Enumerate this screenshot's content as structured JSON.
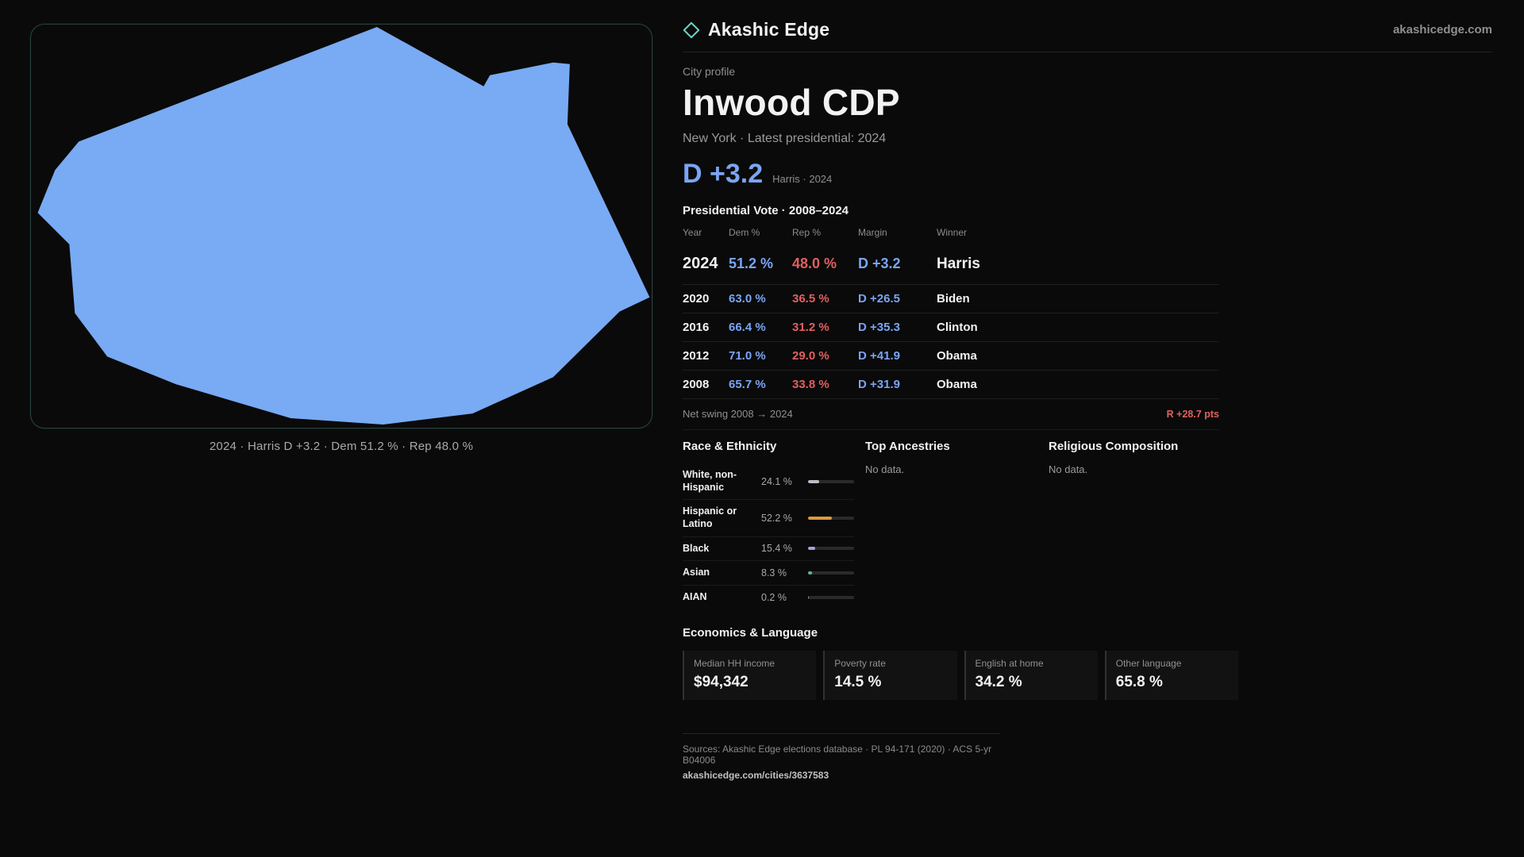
{
  "header": {
    "brand": "Akashic Edge",
    "domain": "akashicedge.com"
  },
  "map": {
    "caption": "2024 · Harris D +3.2 · Dem 51.2 % · Rep 48.0 %",
    "shape_color": "#79aaf4"
  },
  "profile": {
    "kicker": "City profile",
    "title": "Inwood CDP",
    "state_line": "New York · Latest presidential: 2024",
    "headline_margin": "D +3.2",
    "headline_note": "Harris · 2024",
    "table_title": "Presidential Vote · 2008–2024"
  },
  "vote_table": {
    "columns": [
      "Year",
      "Dem %",
      "Rep %",
      "Margin",
      "Winner"
    ],
    "rows": [
      {
        "year": "2024",
        "dem": "51.2 %",
        "rep": "48.0 %",
        "margin": "D +3.2",
        "winner": "Harris"
      },
      {
        "year": "2020",
        "dem": "63.0 %",
        "rep": "36.5 %",
        "margin": "D +26.5",
        "winner": "Biden"
      },
      {
        "year": "2016",
        "dem": "66.4 %",
        "rep": "31.2 %",
        "margin": "D +35.3",
        "winner": "Clinton"
      },
      {
        "year": "2012",
        "dem": "71.0 %",
        "rep": "29.0 %",
        "margin": "D +41.9",
        "winner": "Obama"
      },
      {
        "year": "2008",
        "dem": "65.7 %",
        "rep": "33.8 %",
        "margin": "D +31.9",
        "winner": "Obama"
      }
    ]
  },
  "net_swing": {
    "label": "Net swing 2008 → 2024",
    "value": "R +28.7 pts"
  },
  "race_ethnicity": {
    "title": "Race & Ethnicity",
    "rows": [
      {
        "label": "White, non-Hispanic",
        "value": "24.1 %",
        "pct": 24.1,
        "color": "#b9bec6"
      },
      {
        "label": "Hispanic or Latino",
        "value": "52.2 %",
        "pct": 52.2,
        "color": "#d99a3d"
      },
      {
        "label": "Black",
        "value": "15.4 %",
        "pct": 15.4,
        "color": "#b39ddb"
      },
      {
        "label": "Asian",
        "value": "8.3 %",
        "pct": 8.3,
        "color": "#53c08a"
      },
      {
        "label": "AIAN",
        "value": "0.2 %",
        "pct": 0.2,
        "color": "#9b9b9b"
      }
    ]
  },
  "ancestries": {
    "title": "Top Ancestries",
    "empty": "No data."
  },
  "religion": {
    "title": "Religious Composition",
    "empty": "No data."
  },
  "economics": {
    "title": "Economics & Language",
    "stats": [
      {
        "label": "Median HH income",
        "value": "$94,342"
      },
      {
        "label": "Poverty rate",
        "value": "14.5 %"
      },
      {
        "label": "English at home",
        "value": "34.2 %"
      },
      {
        "label": "Other language",
        "value": "65.8 %"
      }
    ]
  },
  "footer": {
    "sources": "Sources: Akashic Edge elections database · PL 94-171 (2020) · ACS 5-yr B04006",
    "permalink": "akashicedge.com/cities/3637583"
  },
  "colors": {
    "dem": "#7aa5f2",
    "rep": "#e06060",
    "accent": "#6ed3c5"
  }
}
